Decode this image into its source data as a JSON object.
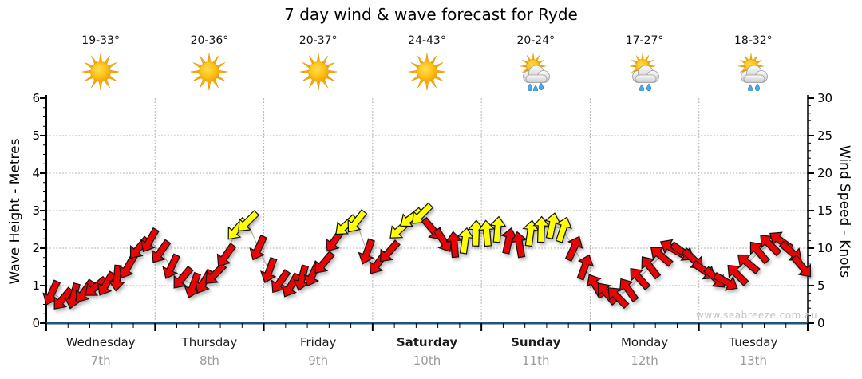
{
  "title": "7 day wind & wave forecast for Ryde",
  "watermark": "www.seabreeze.com.au",
  "left_axis": {
    "label": "Wave Height - Metres",
    "ticks": [
      0,
      1,
      2,
      3,
      4,
      5,
      6
    ]
  },
  "right_axis": {
    "label": "Wind Speed - Knots",
    "ticks": [
      0,
      5,
      10,
      15,
      20,
      25,
      30
    ]
  },
  "days": [
    {
      "name": "Wednesday",
      "date": "7th",
      "temp": "19-33°",
      "icon": "sunny",
      "bold": false
    },
    {
      "name": "Thursday",
      "date": "8th",
      "temp": "20-36°",
      "icon": "sunny",
      "bold": false
    },
    {
      "name": "Friday",
      "date": "9th",
      "temp": "20-37°",
      "icon": "sunny",
      "bold": false
    },
    {
      "name": "Saturday",
      "date": "10th",
      "temp": "24-43°",
      "icon": "sunny",
      "bold": true
    },
    {
      "name": "Sunday",
      "date": "11th",
      "temp": "20-24°",
      "icon": "sun-cloud-showers-heavy",
      "bold": true
    },
    {
      "name": "Monday",
      "date": "12th",
      "temp": "17-27°",
      "icon": "sun-cloud-showers",
      "bold": false
    },
    {
      "name": "Tuesday",
      "date": "13th",
      "temp": "18-32°",
      "icon": "sun-cloud-showers",
      "bold": false
    }
  ],
  "colors": {
    "arrow_red": "#e80505",
    "arrow_yellow": "#ffff00",
    "arrow_outline": "#111111",
    "grid": "#b5b5b5",
    "axis": "#000000",
    "baseline": "#255377",
    "date_text": "#9a9a9a",
    "watermark_text": "#c2c2c2",
    "connector": "#a8a8a8"
  },
  "chart_data": {
    "type": "wind-arrows",
    "title": "7 day wind & wave forecast for Ryde",
    "x_axis": "time, 7 days (Wed 7th - Tue 13th), 10 samples per day",
    "y_left": {
      "label": "Wave Height - Metres",
      "range": [
        0,
        6
      ]
    },
    "y_right": {
      "label": "Wind Speed - Knots",
      "range": [
        0,
        30
      ]
    },
    "grid": "dotted horizontal each metre, dotted vertical each day boundary",
    "arrow_meaning": "arrow direction = wind direction, color r=red y=yellow, s=speed in knots, d=rotation degrees (0=up,180=down)",
    "points": [
      {
        "s": 4.0,
        "d": 205,
        "c": "r"
      },
      {
        "s": 3.2,
        "d": 220,
        "c": "r"
      },
      {
        "s": 3.6,
        "d": 195,
        "c": "r"
      },
      {
        "s": 4.2,
        "d": 215,
        "c": "r"
      },
      {
        "s": 4.8,
        "d": 230,
        "c": "r"
      },
      {
        "s": 5.2,
        "d": 210,
        "c": "r"
      },
      {
        "s": 6.0,
        "d": 185,
        "c": "r"
      },
      {
        "s": 7.5,
        "d": 210,
        "c": "r"
      },
      {
        "s": 10.0,
        "d": 220,
        "c": "r"
      },
      {
        "s": 11.0,
        "d": 210,
        "c": "r"
      },
      {
        "s": 9.5,
        "d": 215,
        "c": "r"
      },
      {
        "s": 7.5,
        "d": 205,
        "c": "r"
      },
      {
        "s": 6.0,
        "d": 220,
        "c": "r"
      },
      {
        "s": 5.0,
        "d": 200,
        "c": "r"
      },
      {
        "s": 5.5,
        "d": 210,
        "c": "r"
      },
      {
        "s": 6.5,
        "d": 225,
        "c": "r"
      },
      {
        "s": 9.0,
        "d": 215,
        "c": "r"
      },
      {
        "s": 12.5,
        "d": 220,
        "c": "y"
      },
      {
        "s": 13.5,
        "d": 225,
        "c": "y"
      },
      {
        "s": 10.0,
        "d": 205,
        "c": "r"
      },
      {
        "s": 7.0,
        "d": 200,
        "c": "r"
      },
      {
        "s": 5.5,
        "d": 215,
        "c": "r"
      },
      {
        "s": 5.0,
        "d": 210,
        "c": "r"
      },
      {
        "s": 6.0,
        "d": 195,
        "c": "r"
      },
      {
        "s": 6.5,
        "d": 205,
        "c": "r"
      },
      {
        "s": 8.0,
        "d": 220,
        "c": "r"
      },
      {
        "s": 11.0,
        "d": 215,
        "c": "r"
      },
      {
        "s": 13.0,
        "d": 228,
        "c": "y"
      },
      {
        "s": 13.5,
        "d": 218,
        "c": "y"
      },
      {
        "s": 9.5,
        "d": 200,
        "c": "r"
      },
      {
        "s": 8.0,
        "d": 215,
        "c": "r"
      },
      {
        "s": 9.5,
        "d": 222,
        "c": "r"
      },
      {
        "s": 12.5,
        "d": 228,
        "c": "y"
      },
      {
        "s": 14.0,
        "d": 232,
        "c": "y"
      },
      {
        "s": 14.5,
        "d": 225,
        "c": "y"
      },
      {
        "s": 12.5,
        "d": 140,
        "c": "r"
      },
      {
        "s": 11.0,
        "d": 148,
        "c": "r"
      },
      {
        "s": 10.5,
        "d": 355,
        "c": "r"
      },
      {
        "s": 11.0,
        "d": 8,
        "c": "y"
      },
      {
        "s": 12.0,
        "d": 2,
        "c": "y"
      },
      {
        "s": 12.0,
        "d": 355,
        "c": "y"
      },
      {
        "s": 12.5,
        "d": 5,
        "c": "y"
      },
      {
        "s": 11.0,
        "d": 12,
        "c": "r"
      },
      {
        "s": 10.5,
        "d": 350,
        "c": "r"
      },
      {
        "s": 12.0,
        "d": 8,
        "c": "y"
      },
      {
        "s": 12.5,
        "d": 2,
        "c": "y"
      },
      {
        "s": 13.0,
        "d": 12,
        "c": "y"
      },
      {
        "s": 12.5,
        "d": 18,
        "c": "y"
      },
      {
        "s": 10.0,
        "d": 25,
        "c": "r"
      },
      {
        "s": 7.5,
        "d": 20,
        "c": "r"
      },
      {
        "s": 5.0,
        "d": 330,
        "c": "r"
      },
      {
        "s": 4.0,
        "d": 320,
        "c": "r"
      },
      {
        "s": 3.5,
        "d": 315,
        "c": "r"
      },
      {
        "s": 4.5,
        "d": 325,
        "c": "r"
      },
      {
        "s": 6.0,
        "d": 318,
        "c": "r"
      },
      {
        "s": 7.5,
        "d": 322,
        "c": "r"
      },
      {
        "s": 9.0,
        "d": 310,
        "c": "r"
      },
      {
        "s": 10.0,
        "d": 300,
        "c": "r"
      },
      {
        "s": 9.5,
        "d": 125,
        "c": "r"
      },
      {
        "s": 8.5,
        "d": 135,
        "c": "r"
      },
      {
        "s": 7.0,
        "d": 125,
        "c": "r"
      },
      {
        "s": 6.0,
        "d": 135,
        "c": "r"
      },
      {
        "s": 5.5,
        "d": 120,
        "c": "r"
      },
      {
        "s": 6.5,
        "d": 315,
        "c": "r"
      },
      {
        "s": 8.0,
        "d": 310,
        "c": "r"
      },
      {
        "s": 9.5,
        "d": 320,
        "c": "r"
      },
      {
        "s": 10.5,
        "d": 315,
        "c": "r"
      },
      {
        "s": 11.0,
        "d": 305,
        "c": "r"
      },
      {
        "s": 9.5,
        "d": 130,
        "c": "r"
      },
      {
        "s": 7.5,
        "d": 140,
        "c": "r"
      }
    ]
  }
}
